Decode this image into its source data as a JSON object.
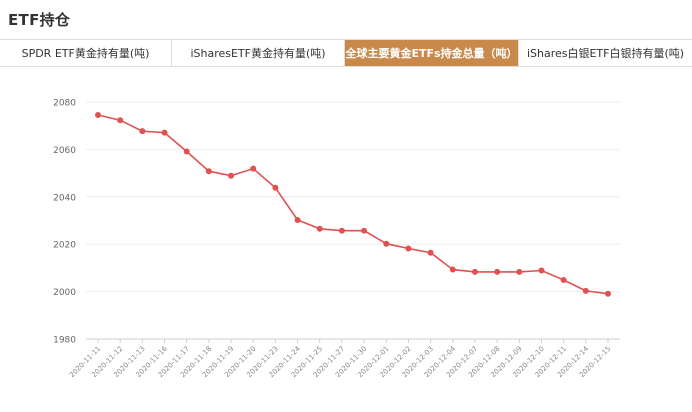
{
  "header": {
    "title": "ETF持仓"
  },
  "tabs": [
    {
      "label": "SPDR ETF黄金持有量(吨)",
      "active": false
    },
    {
      "label": "iSharesETF黄金持有量(吨)",
      "active": false
    },
    {
      "label": "全球主要黄金ETFs持金总量（吨）",
      "active": true
    },
    {
      "label": "iShares白银ETF白银持有量(吨)",
      "active": false
    }
  ],
  "colors": {
    "accent": "#c8894a",
    "series": "#e05252",
    "grid": "#eeeeee",
    "axis_text": "#666666"
  },
  "chart_data": {
    "type": "line",
    "categories": [
      "2020-11-11",
      "2020-11-12",
      "2020-11-13",
      "2020-11-16",
      "2020-11-17",
      "2020-11-18",
      "2020-11-19",
      "2020-11-20",
      "2020-11-23",
      "2020-11-24",
      "2020-11-25",
      "2020-11-27",
      "2020-11-30",
      "2020-12-01",
      "2020-12-02",
      "2020-12-03",
      "2020-12-04",
      "2020-12-07",
      "2020-12-08",
      "2020-12-09",
      "2020-12-10",
      "2020-12-11",
      "2020-12-14",
      "2020-12-15"
    ],
    "series": [
      {
        "values": [
          2074.5,
          2072.3,
          2067.7,
          2067.1,
          2059.1,
          2050.8,
          2048.9,
          2051.9,
          2043.8,
          2030.2,
          2026.5,
          2025.7,
          2025.7,
          2020.2,
          2018.2,
          2016.4,
          2009.3,
          2008.3,
          2008.3,
          2008.3,
          2008.9,
          2004.9,
          2000.3,
          1999.1
        ]
      }
    ],
    "yticks": [
      1980,
      2000,
      2020,
      2040,
      2060,
      2080
    ],
    "ylim": [
      1980,
      2080
    ],
    "title": "",
    "xlabel": "",
    "ylabel": "",
    "grid": true
  }
}
